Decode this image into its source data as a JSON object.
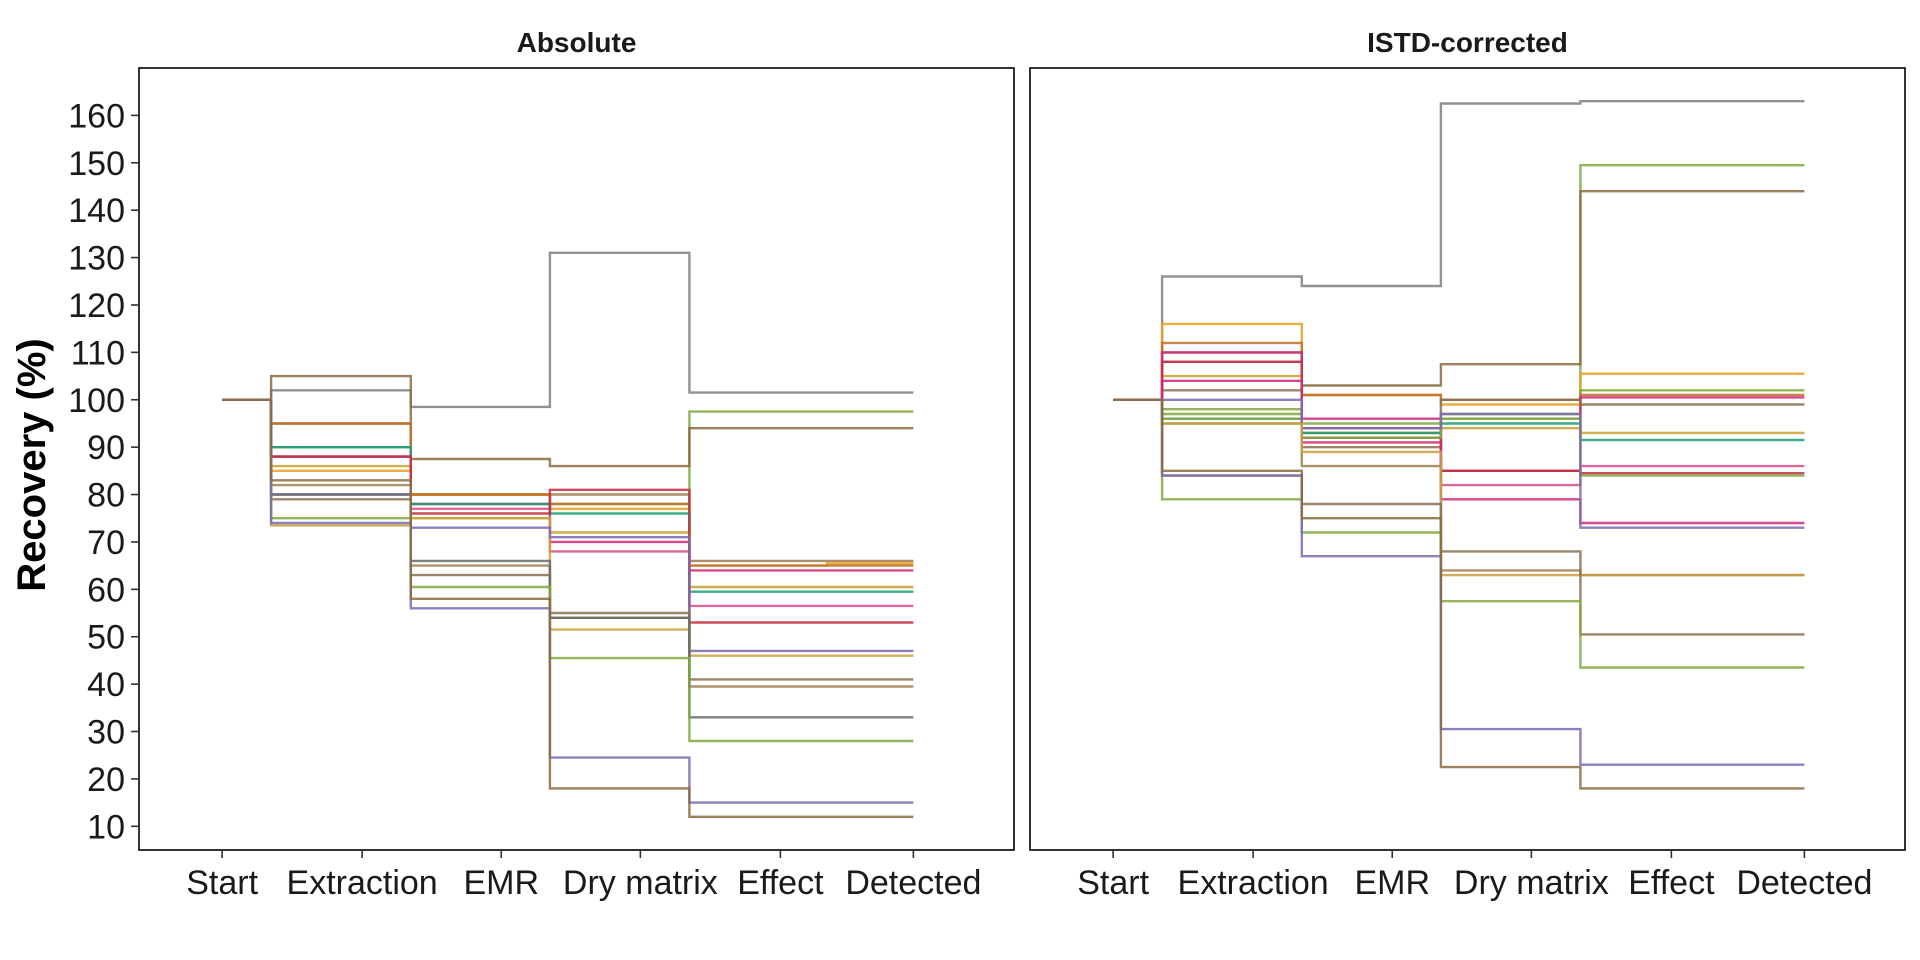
{
  "chart_data": {
    "type": "line",
    "ylabel": "Recovery (%)",
    "ylim": [
      5,
      170
    ],
    "yticks": [
      10,
      20,
      30,
      40,
      50,
      60,
      70,
      80,
      90,
      100,
      110,
      120,
      130,
      140,
      150,
      160
    ],
    "categories": [
      "Start",
      "Extraction",
      "EMR",
      "Dry matrix",
      "Effect",
      "Detected"
    ],
    "grid": false,
    "legend": "none",
    "panels": [
      {
        "title": "Absolute",
        "series": [
          {
            "color": "#7f7f7f",
            "values": [
              100,
              102,
              98.5,
              131,
              101.5,
              101.5
            ]
          },
          {
            "color": "#7fa83f",
            "values": [
              100,
              90,
              80,
              78,
              97.5,
              97.5
            ]
          },
          {
            "color": "#8c6a3f",
            "values": [
              100,
              105,
              87.5,
              86,
              94,
              94
            ]
          },
          {
            "color": "#a07a4f",
            "values": [
              100,
              95,
              80,
              80,
              66,
              66
            ]
          },
          {
            "color": "#e6a020",
            "values": [
              100,
              85,
              80,
              77,
              65,
              65.5
            ]
          },
          {
            "color": "#c0702a",
            "values": [
              100,
              95,
              80,
              78,
              65,
              65
            ]
          },
          {
            "color": "#d02878",
            "values": [
              100,
              88,
              78,
              70,
              64,
              64
            ]
          },
          {
            "color": "#1b9e77",
            "values": [
              100,
              90,
              78,
              76,
              59.5,
              59.5
            ]
          },
          {
            "color": "#c9a030",
            "values": [
              100,
              86,
              75,
              72,
              60.5,
              60.5
            ]
          },
          {
            "color": "#d5508a",
            "values": [
              100,
              88,
              77,
              68,
              56.5,
              56.5
            ]
          },
          {
            "color": "#c03040",
            "values": [
              100,
              88,
              76,
              81,
              53,
              53
            ]
          },
          {
            "color": "#c8a040",
            "values": [
              100,
              73.5,
              75,
              51.5,
              46,
              46
            ]
          },
          {
            "color": "#7a6ab0",
            "values": [
              100,
              80,
              73,
              71,
              47,
              47
            ]
          },
          {
            "color": "#8a7050",
            "values": [
              100,
              79,
              63,
              55,
              41,
              41
            ]
          },
          {
            "color": "#a08050",
            "values": [
              100,
              82,
              65,
              54,
              39.5,
              39.5
            ]
          },
          {
            "color": "#6a6a6a",
            "values": [
              100,
              80,
              66,
              54,
              33,
              33
            ]
          },
          {
            "color": "#7fa83f",
            "values": [
              100,
              75,
              60.5,
              45.5,
              28,
              28
            ]
          },
          {
            "color": "#7a6ab0",
            "values": [
              100,
              74,
              56,
              24.5,
              15,
              15
            ]
          },
          {
            "color": "#8c6a3f",
            "values": [
              100,
              83,
              58,
              18,
              12,
              12
            ]
          }
        ]
      },
      {
        "title": "ISTD-corrected",
        "series": [
          {
            "color": "#7f7f7f",
            "values": [
              100,
              126,
              124,
              162.5,
              163,
              163
            ]
          },
          {
            "color": "#7fa83f",
            "values": [
              100,
              97,
              93,
              97,
              149.5,
              149.5
            ]
          },
          {
            "color": "#8c6a3f",
            "values": [
              100,
              110,
              103,
              107.5,
              144,
              144
            ]
          },
          {
            "color": "#e6a020",
            "values": [
              100,
              116,
              101,
              99,
              105.5,
              105.5
            ]
          },
          {
            "color": "#7fa83f",
            "values": [
              100,
              98,
              95,
              96,
              102,
              102
            ]
          },
          {
            "color": "#c0702a",
            "values": [
              100,
              112,
              101,
              100,
              101,
              101
            ]
          },
          {
            "color": "#d02878",
            "values": [
              100,
              110,
              96,
              85,
              100.5,
              100.5
            ]
          },
          {
            "color": "#8a7050",
            "values": [
              100,
              102,
              90,
              100,
              99,
              99
            ]
          },
          {
            "color": "#c9a030",
            "values": [
              100,
              105,
              93,
              94,
              93,
              93
            ]
          },
          {
            "color": "#1b9e77",
            "values": [
              100,
              96,
              93,
              95,
              91.5,
              91.5
            ]
          },
          {
            "color": "#d5508a",
            "values": [
              100,
              108,
              94,
              82,
              86,
              86
            ]
          },
          {
            "color": "#c03040",
            "values": [
              100,
              108,
              92,
              85,
              84.5,
              84.5
            ]
          },
          {
            "color": "#7fa83f",
            "values": [
              100,
              96,
              92,
              96,
              84,
              84
            ]
          },
          {
            "color": "#d02878",
            "values": [
              100,
              104,
              91,
              79,
              74,
              74
            ]
          },
          {
            "color": "#7a6ab0",
            "values": [
              100,
              100,
              94,
              97,
              73,
              73
            ]
          },
          {
            "color": "#a08050",
            "values": [
              100,
              95,
              86,
              64,
              63,
              63
            ]
          },
          {
            "color": "#c8a040",
            "values": [
              100,
              95,
              89,
              63,
              63,
              63
            ]
          },
          {
            "color": "#8a7050",
            "values": [
              100,
              84,
              78,
              68,
              50.5,
              50.5
            ]
          },
          {
            "color": "#7fa83f",
            "values": [
              100,
              79,
              72,
              57.5,
              43.5,
              43.5
            ]
          },
          {
            "color": "#7a6ab0",
            "values": [
              100,
              84,
              67,
              30.5,
              23,
              23
            ]
          },
          {
            "color": "#8c6a3f",
            "values": [
              100,
              85,
              75,
              22.5,
              18,
              18
            ]
          }
        ]
      }
    ]
  }
}
